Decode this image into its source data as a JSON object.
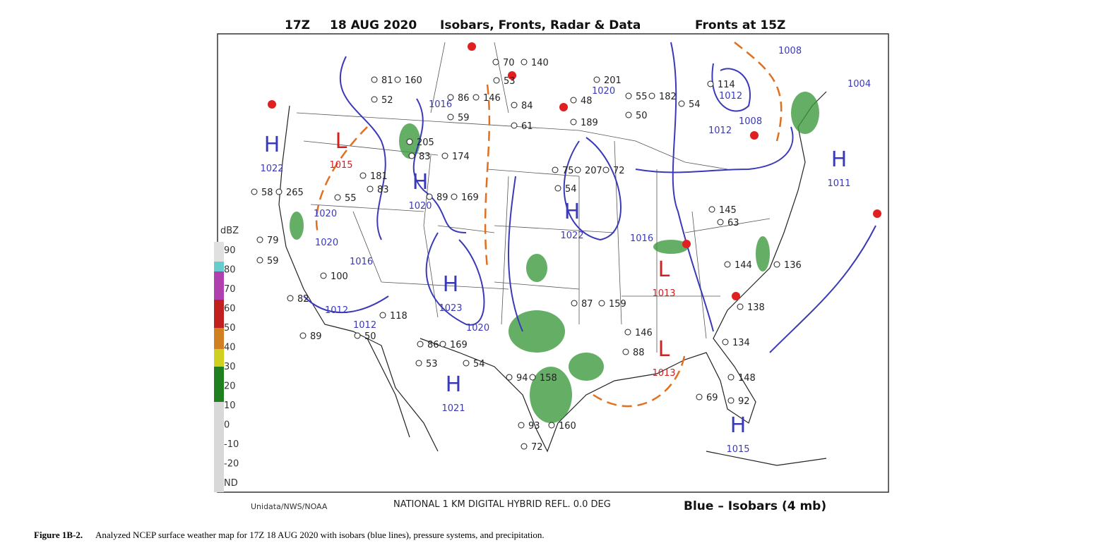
{
  "header": {
    "time": "17Z",
    "date": "18 AUG 2020",
    "product": "Isobars, Fronts, Radar & Data",
    "fronts": "Fronts at 15Z"
  },
  "color_scale": {
    "unit": "dBZ",
    "labels": [
      "90",
      "80",
      "70",
      "60",
      "50",
      "40",
      "30",
      "20",
      "10",
      "0",
      "-10",
      "-20",
      "ND"
    ]
  },
  "systems": [
    {
      "symbol": "H",
      "pressure": "1022"
    },
    {
      "symbol": "L",
      "pressure": "1015"
    },
    {
      "symbol": "H",
      "pressure": "1020"
    },
    {
      "symbol": "H",
      "pressure": "1022"
    },
    {
      "symbol": "H",
      "pressure": "1023"
    },
    {
      "symbol": "H",
      "pressure": "1021"
    },
    {
      "symbol": "L",
      "pressure": "1013"
    },
    {
      "symbol": "L",
      "pressure": "1013"
    },
    {
      "symbol": "H",
      "pressure": "1011"
    },
    {
      "symbol": "H",
      "pressure": "1015"
    }
  ],
  "isobar_labels": [
    "1016",
    "1020",
    "1008",
    "1012",
    "1008",
    "1012",
    "1004",
    "1020",
    "1020",
    "1016",
    "1012",
    "1012",
    "1020",
    "1016"
  ],
  "stations": [
    "160",
    "52",
    "81",
    "86",
    "146",
    "59",
    "70",
    "140",
    "53",
    "84",
    "61",
    "201",
    "48",
    "55",
    "182",
    "50",
    "114",
    "54",
    "189",
    "205",
    "83",
    "174",
    "181",
    "83",
    "89",
    "169",
    "75",
    "207",
    "54",
    "72",
    "145",
    "63",
    "136",
    "144",
    "58",
    "265",
    "55",
    "79",
    "59",
    "100",
    "82",
    "118",
    "50",
    "89",
    "86",
    "169",
    "53",
    "54",
    "94",
    "158",
    "160",
    "72",
    "93",
    "148",
    "69",
    "92",
    "87",
    "159",
    "134",
    "138",
    "146",
    "88"
  ],
  "footer": {
    "source": "Unidata/NWS/NOAA",
    "radar": "NATIONAL 1 KM DIGITAL HYBRID REFL. 0.0 DEG",
    "legend": "Blue – Isobars (4 mb)"
  },
  "caption": {
    "label": "Figure 1B-2.",
    "text": "Analyzed NCEP surface weather map for 17Z 18 AUG 2020 with isobars (blue lines), pressure systems, and precipitation."
  }
}
